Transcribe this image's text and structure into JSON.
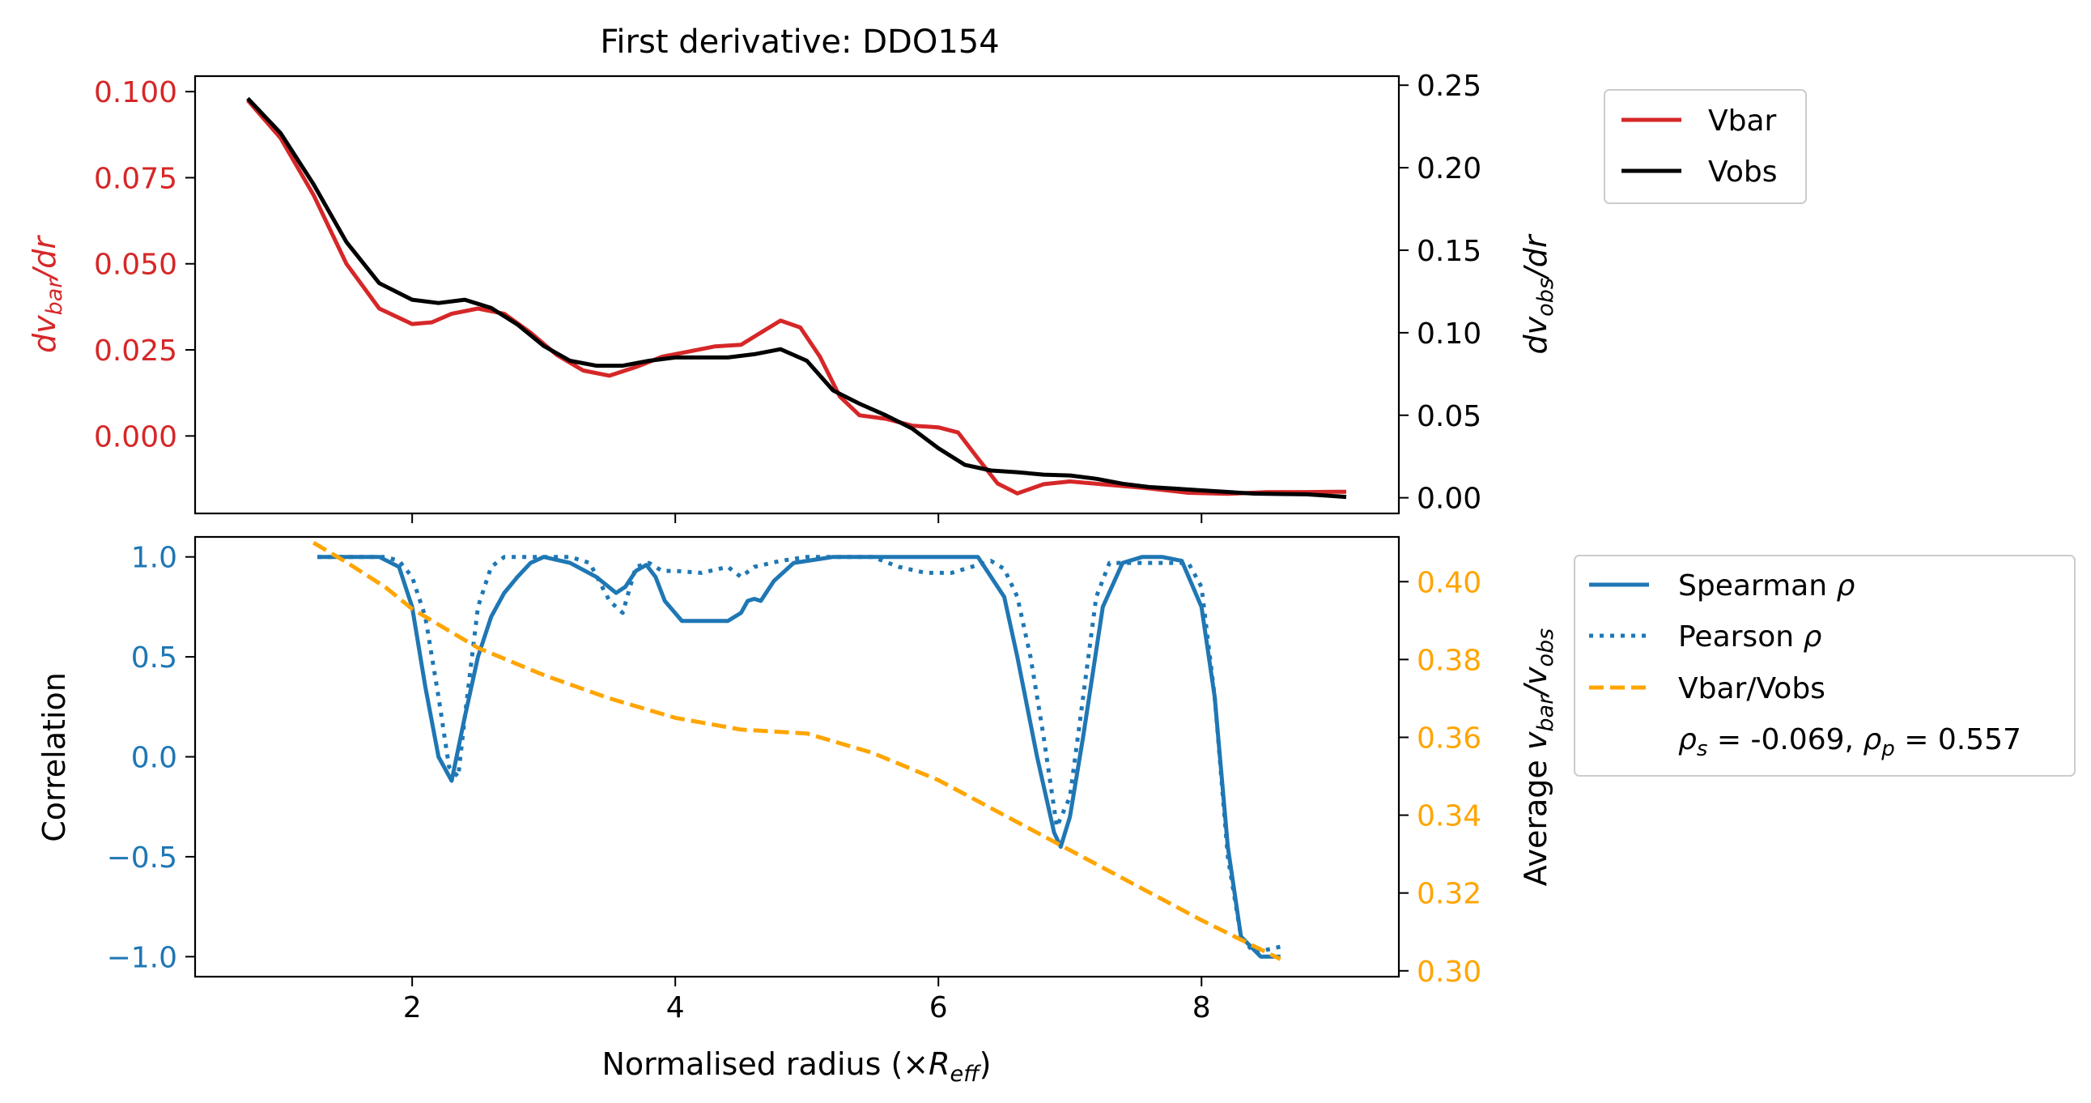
{
  "title": "First derivative: DDO154",
  "colors": {
    "vbar": "#d62728",
    "vobs": "#000000",
    "spearman": "#1f77b4",
    "ratio": "#ffa500",
    "axis": "#000000"
  },
  "top": {
    "left_ylabel_main": "dv",
    "left_ylabel_sub": "bar",
    "left_ylabel_tail": "/dr",
    "right_ylabel_main": "dv",
    "right_ylabel_sub": "obs",
    "right_ylabel_tail": "/dr",
    "legend": {
      "vbar": "Vbar",
      "vobs": "Vobs"
    }
  },
  "bottom": {
    "left_ylabel": "Correlation",
    "right_ylabel_prefix": "Average ",
    "right_ylabel_v1": "v",
    "right_ylabel_v1sub": "bar",
    "right_ylabel_slash": "/",
    "right_ylabel_v2": "v",
    "right_ylabel_v2sub": "obs",
    "legend": {
      "spearman_a": "Spearman ",
      "spearman_b": "ρ",
      "pearson_a": "Pearson ",
      "pearson_b": "ρ",
      "ratio": "Vbar/Vobs",
      "stats_rho1": "ρ",
      "stats_s": "s",
      "stats_v1": " = -0.069, ",
      "stats_rho2": "ρ",
      "stats_p": "p",
      "stats_v2": " = 0.557"
    }
  },
  "xlabel_prefix": "Normalised radius (×",
  "xlabel_R": "R",
  "xlabel_sub": "eff",
  "xlabel_suffix": ")",
  "chart_data": [
    {
      "type": "line",
      "panel": "top",
      "title": "First derivative: DDO154",
      "xlim": [
        0.35,
        9.5
      ],
      "x_ticks": [
        2,
        4,
        6,
        8
      ],
      "x_tick_labels": [],
      "left_axis": {
        "ylim": [
          -0.0225,
          0.1045
        ],
        "ticks": [
          0.0,
          0.025,
          0.05,
          0.075,
          0.1
        ],
        "tick_labels": [
          "0.000",
          "0.025",
          "0.050",
          "0.075",
          "0.100"
        ]
      },
      "right_axis": {
        "ylim": [
          -0.0095,
          0.2555
        ],
        "ticks": [
          0.0,
          0.05,
          0.1,
          0.15,
          0.2,
          0.25
        ],
        "tick_labels": [
          "0.00",
          "0.05",
          "0.10",
          "0.15",
          "0.20",
          "0.25"
        ]
      },
      "series": [
        {
          "name": "Vbar",
          "axis": "left",
          "x": [
            0.75,
            1.0,
            1.25,
            1.5,
            1.75,
            2.0,
            2.15,
            2.3,
            2.5,
            2.7,
            2.9,
            3.1,
            3.3,
            3.5,
            3.7,
            3.9,
            4.1,
            4.3,
            4.5,
            4.65,
            4.8,
            4.95,
            5.1,
            5.25,
            5.4,
            5.6,
            5.8,
            6.0,
            6.15,
            6.3,
            6.45,
            6.6,
            6.8,
            7.0,
            7.3,
            7.6,
            7.9,
            8.2,
            8.5,
            8.8,
            9.1
          ],
          "y": [
            0.0975,
            0.0865,
            0.07,
            0.05,
            0.037,
            0.0325,
            0.033,
            0.0355,
            0.037,
            0.0355,
            0.03,
            0.0235,
            0.019,
            0.0175,
            0.02,
            0.023,
            0.0245,
            0.026,
            0.0265,
            0.03,
            0.0335,
            0.0315,
            0.023,
            0.0115,
            0.006,
            0.005,
            0.003,
            0.0025,
            0.001,
            -0.0065,
            -0.0138,
            -0.0167,
            -0.014,
            -0.0132,
            -0.0142,
            -0.0152,
            -0.0165,
            -0.0168,
            -0.0163,
            -0.0163,
            -0.0162
          ]
        },
        {
          "name": "Vobs",
          "axis": "right",
          "x": [
            0.75,
            1.0,
            1.25,
            1.5,
            1.75,
            2.0,
            2.2,
            2.4,
            2.6,
            2.8,
            3.0,
            3.2,
            3.4,
            3.6,
            3.8,
            4.0,
            4.2,
            4.4,
            4.6,
            4.8,
            5.0,
            5.2,
            5.4,
            5.6,
            5.8,
            6.0,
            6.2,
            6.4,
            6.6,
            6.8,
            7.0,
            7.2,
            7.4,
            7.6,
            7.8,
            8.0,
            8.2,
            8.4,
            8.6,
            8.8,
            9.1
          ],
          "y": [
            0.242,
            0.221,
            0.19,
            0.155,
            0.13,
            0.12,
            0.118,
            0.12,
            0.115,
            0.105,
            0.092,
            0.083,
            0.08,
            0.08,
            0.083,
            0.085,
            0.085,
            0.085,
            0.087,
            0.09,
            0.083,
            0.065,
            0.057,
            0.05,
            0.042,
            0.03,
            0.02,
            0.0165,
            0.0155,
            0.014,
            0.0135,
            0.0115,
            0.0085,
            0.0065,
            0.0055,
            0.0045,
            0.0035,
            0.0025,
            0.0023,
            0.0021,
            0.0005
          ]
        }
      ],
      "legend": [
        "Vbar",
        "Vobs"
      ],
      "legend_position": "outside upper right"
    },
    {
      "type": "line",
      "panel": "bottom",
      "xlim": [
        0.35,
        9.5
      ],
      "x_ticks": [
        2,
        4,
        6,
        8
      ],
      "x_tick_labels": [
        "2",
        "4",
        "6",
        "8"
      ],
      "xlabel": "Normalised radius (×R_eff)",
      "left_axis": {
        "label": "Correlation",
        "ylim": [
          -1.1,
          1.1
        ],
        "ticks": [
          -1.0,
          -0.5,
          0.0,
          0.5,
          1.0
        ],
        "tick_labels": [
          "−1.0",
          "−0.5",
          "0.0",
          "0.5",
          "1.0"
        ]
      },
      "right_axis": {
        "label": "Average v_bar/v_obs",
        "ylim": [
          0.2985,
          0.4115
        ],
        "ticks": [
          0.3,
          0.32,
          0.34,
          0.36,
          0.38,
          0.4
        ],
        "tick_labels": [
          "0.30",
          "0.32",
          "0.34",
          "0.36",
          "0.38",
          "0.40"
        ]
      },
      "series": [
        {
          "name": "Spearman ρ",
          "axis": "left",
          "style": "solid",
          "x": [
            1.28,
            1.6,
            1.75,
            1.9,
            2.0,
            2.1,
            2.2,
            2.3,
            2.4,
            2.5,
            2.6,
            2.7,
            2.8,
            2.9,
            3.0,
            3.2,
            3.4,
            3.55,
            3.62,
            3.7,
            3.78,
            3.85,
            3.92,
            4.05,
            4.2,
            4.4,
            4.5,
            4.55,
            4.6,
            4.65,
            4.75,
            4.9,
            5.2,
            5.6,
            5.9,
            6.1,
            6.3,
            6.5,
            6.6,
            6.75,
            6.88,
            6.93,
            7.0,
            7.1,
            7.25,
            7.4,
            7.55,
            7.7,
            7.85,
            8.0,
            8.1,
            8.2,
            8.3,
            8.45,
            8.6
          ],
          "y": [
            1.0,
            1.0,
            1.0,
            0.95,
            0.75,
            0.35,
            0.0,
            -0.12,
            0.2,
            0.5,
            0.7,
            0.82,
            0.9,
            0.97,
            1.0,
            0.97,
            0.9,
            0.82,
            0.85,
            0.93,
            0.96,
            0.9,
            0.78,
            0.68,
            0.68,
            0.68,
            0.72,
            0.78,
            0.79,
            0.78,
            0.88,
            0.97,
            1.0,
            1.0,
            1.0,
            1.0,
            1.0,
            0.8,
            0.5,
            0.0,
            -0.38,
            -0.45,
            -0.3,
            0.1,
            0.75,
            0.97,
            1.0,
            1.0,
            0.98,
            0.75,
            0.3,
            -0.45,
            -0.9,
            -1.0,
            -1.0
          ]
        },
        {
          "name": "Pearson ρ",
          "axis": "left",
          "style": "dotted",
          "x": [
            1.28,
            1.8,
            1.9,
            2.0,
            2.1,
            2.2,
            2.28,
            2.35,
            2.4,
            2.5,
            2.6,
            2.7,
            2.8,
            2.9,
            3.0,
            3.2,
            3.35,
            3.5,
            3.6,
            3.7,
            3.8,
            3.9,
            4.0,
            4.2,
            4.4,
            4.5,
            4.6,
            4.8,
            5.0,
            5.5,
            5.7,
            5.9,
            6.1,
            6.3,
            6.4,
            6.5,
            6.6,
            6.7,
            6.8,
            6.9,
            7.0,
            7.1,
            7.2,
            7.3,
            7.5,
            7.7,
            7.9,
            8.0,
            8.1,
            8.2,
            8.3,
            8.4,
            8.6
          ],
          "y": [
            1.0,
            1.0,
            0.98,
            0.9,
            0.7,
            0.3,
            -0.05,
            -0.1,
            0.2,
            0.75,
            0.95,
            1.0,
            1.0,
            1.0,
            1.0,
            1.0,
            0.97,
            0.78,
            0.72,
            0.95,
            0.97,
            0.93,
            0.93,
            0.92,
            0.95,
            0.9,
            0.95,
            0.98,
            1.0,
            1.0,
            0.95,
            0.92,
            0.92,
            0.96,
            0.98,
            0.94,
            0.8,
            0.5,
            0.1,
            -0.35,
            -0.2,
            0.3,
            0.8,
            0.97,
            0.97,
            0.97,
            0.97,
            0.85,
            0.3,
            -0.5,
            -0.9,
            -0.98,
            -0.95
          ]
        },
        {
          "name": "Vbar/Vobs",
          "axis": "right",
          "style": "dashed",
          "x": [
            1.25,
            1.5,
            1.8,
            2.0,
            2.5,
            3.0,
            3.5,
            4.0,
            4.5,
            5.0,
            5.5,
            6.0,
            6.5,
            7.0,
            7.5,
            8.0,
            8.6
          ],
          "y": [
            0.41,
            0.405,
            0.3985,
            0.393,
            0.383,
            0.376,
            0.37,
            0.365,
            0.362,
            0.361,
            0.356,
            0.349,
            0.34,
            0.331,
            0.322,
            0.313,
            0.303
          ]
        }
      ],
      "legend": [
        "Spearman ρ",
        "Pearson ρ",
        "Vbar/Vobs",
        "ρs = -0.069, ρp = 0.557"
      ],
      "legend_position": "outside upper right"
    }
  ]
}
